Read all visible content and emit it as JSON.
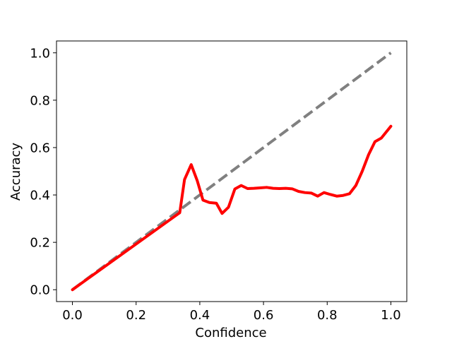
{
  "chart_data": {
    "type": "line",
    "title": "",
    "xlabel": "Confidence",
    "ylabel": "Accuracy",
    "xlim": [
      -0.05,
      1.05
    ],
    "ylim": [
      -0.05,
      1.05
    ],
    "xticks": [
      0.0,
      0.2,
      0.4,
      0.6,
      0.8,
      1.0
    ],
    "yticks": [
      0.0,
      0.2,
      0.4,
      0.6,
      0.8,
      1.0
    ],
    "xtick_labels": [
      "0.0",
      "0.2",
      "0.4",
      "0.6",
      "0.8",
      "1.0"
    ],
    "ytick_labels": [
      "0.0",
      "0.2",
      "0.4",
      "0.6",
      "0.8",
      "1.0"
    ],
    "grid": false,
    "legend": "none",
    "series": [
      {
        "style": "dashed",
        "color": "#808080",
        "x": [
          0.0,
          1.0
        ],
        "y": [
          0.0,
          1.0
        ]
      },
      {
        "style": "solid",
        "color": "#ff0000",
        "x": [
          0.0,
          0.337,
          0.352,
          0.373,
          0.392,
          0.41,
          0.43,
          0.452,
          0.47,
          0.49,
          0.51,
          0.53,
          0.55,
          0.57,
          0.59,
          0.61,
          0.63,
          0.65,
          0.67,
          0.69,
          0.71,
          0.73,
          0.75,
          0.77,
          0.79,
          0.81,
          0.83,
          0.85,
          0.87,
          0.89,
          0.91,
          0.93,
          0.95,
          0.97,
          1.0
        ],
        "y": [
          0.0,
          0.325,
          0.465,
          0.528,
          0.46,
          0.378,
          0.368,
          0.365,
          0.322,
          0.348,
          0.425,
          0.44,
          0.427,
          0.428,
          0.43,
          0.432,
          0.428,
          0.427,
          0.428,
          0.426,
          0.415,
          0.41,
          0.408,
          0.395,
          0.41,
          0.402,
          0.395,
          0.398,
          0.405,
          0.44,
          0.5,
          0.57,
          0.625,
          0.64,
          0.69
        ]
      }
    ]
  }
}
